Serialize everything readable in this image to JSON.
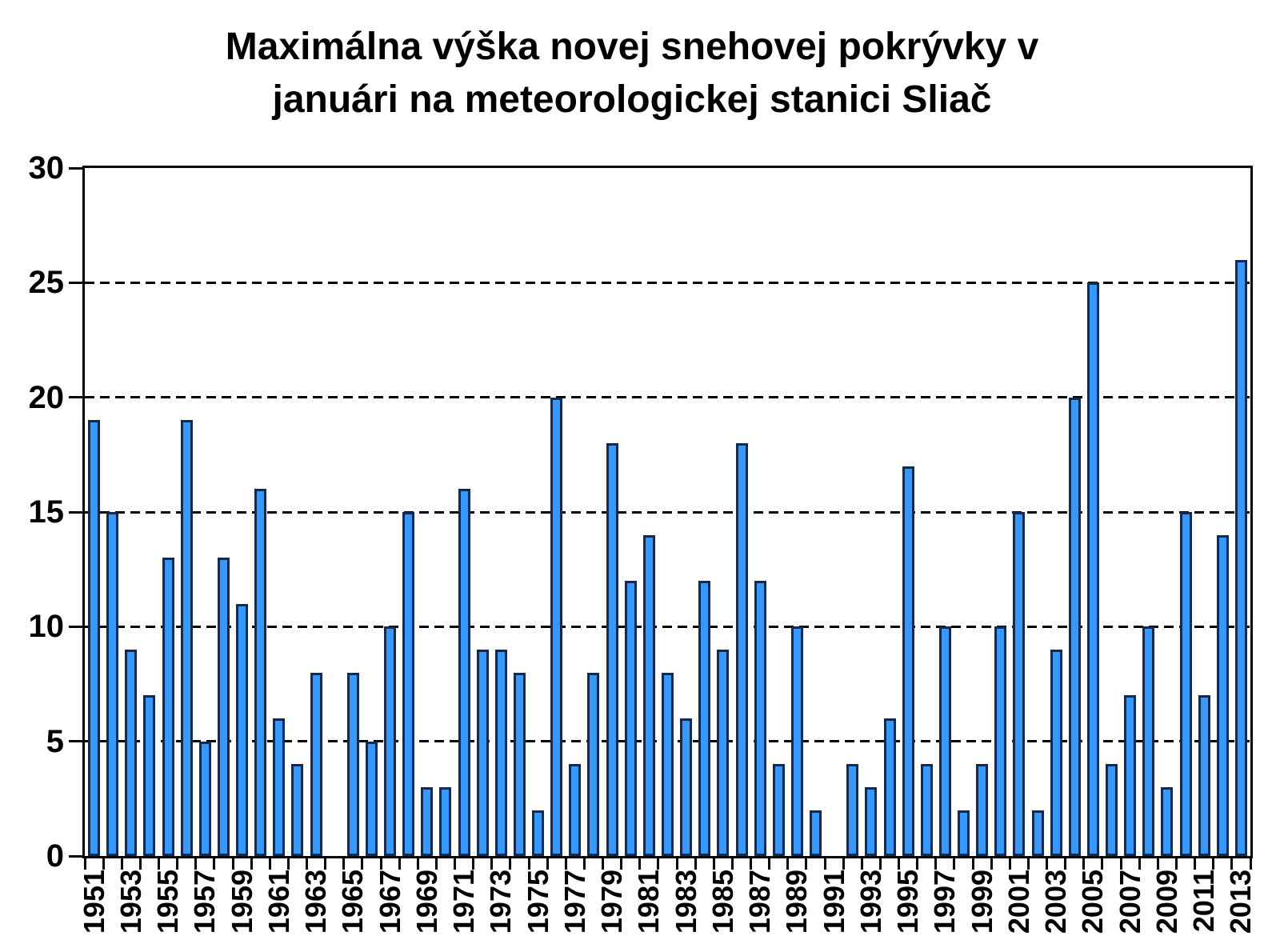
{
  "chart_data": {
    "type": "bar",
    "title": "Maximálna výška novej snehovej pokrývky v januári na meteorologickej stanici Sliač",
    "title_lines": [
      "Maximálna výška novej snehovej pokrývky v",
      "januári na meteorologickej stanici Sliač"
    ],
    "xlabel": "",
    "ylabel": "",
    "ylim": [
      0,
      30
    ],
    "yticks": [
      0,
      5,
      10,
      15,
      20,
      25,
      30
    ],
    "grid": "horizontal-dashed",
    "legend": "none",
    "bar_fill": "#3598FA",
    "bar_border": "#14294F",
    "years": [
      1951,
      1952,
      1953,
      1954,
      1955,
      1956,
      1957,
      1958,
      1959,
      1960,
      1961,
      1962,
      1963,
      1964,
      1965,
      1966,
      1967,
      1968,
      1969,
      1970,
      1971,
      1972,
      1973,
      1974,
      1975,
      1976,
      1977,
      1978,
      1979,
      1980,
      1981,
      1982,
      1983,
      1984,
      1985,
      1986,
      1987,
      1988,
      1989,
      1990,
      1991,
      1992,
      1993,
      1994,
      1995,
      1996,
      1997,
      1998,
      1999,
      2000,
      2001,
      2002,
      2003,
      2004,
      2005,
      2006,
      2007,
      2008,
      2009,
      2010,
      2011,
      2012,
      2013
    ],
    "values": [
      19,
      15,
      9,
      7,
      13,
      19,
      5,
      13,
      11,
      16,
      6,
      4,
      8,
      null,
      8,
      5,
      10,
      15,
      3,
      3,
      16,
      9,
      9,
      8,
      2,
      20,
      4,
      8,
      18,
      12,
      14,
      8,
      6,
      12,
      9,
      18,
      12,
      4,
      10,
      2,
      null,
      4,
      3,
      6,
      17,
      4,
      10,
      2,
      4,
      10,
      15,
      2,
      9,
      20,
      25,
      4,
      7,
      10,
      3,
      15,
      7,
      14,
      26
    ],
    "x_tick_labels": [
      "1951",
      "1953",
      "1955",
      "1957",
      "1959",
      "1961",
      "1963",
      "1965",
      "1967",
      "1969",
      "1971",
      "1973",
      "1975",
      "1977",
      "1979",
      "1981",
      "1983",
      "1985",
      "1987",
      "1989",
      "1991",
      "1993",
      "1995",
      "1997",
      "1999",
      "2001",
      "2003",
      "2005",
      "2007",
      "2009",
      "2011",
      "2013"
    ]
  }
}
